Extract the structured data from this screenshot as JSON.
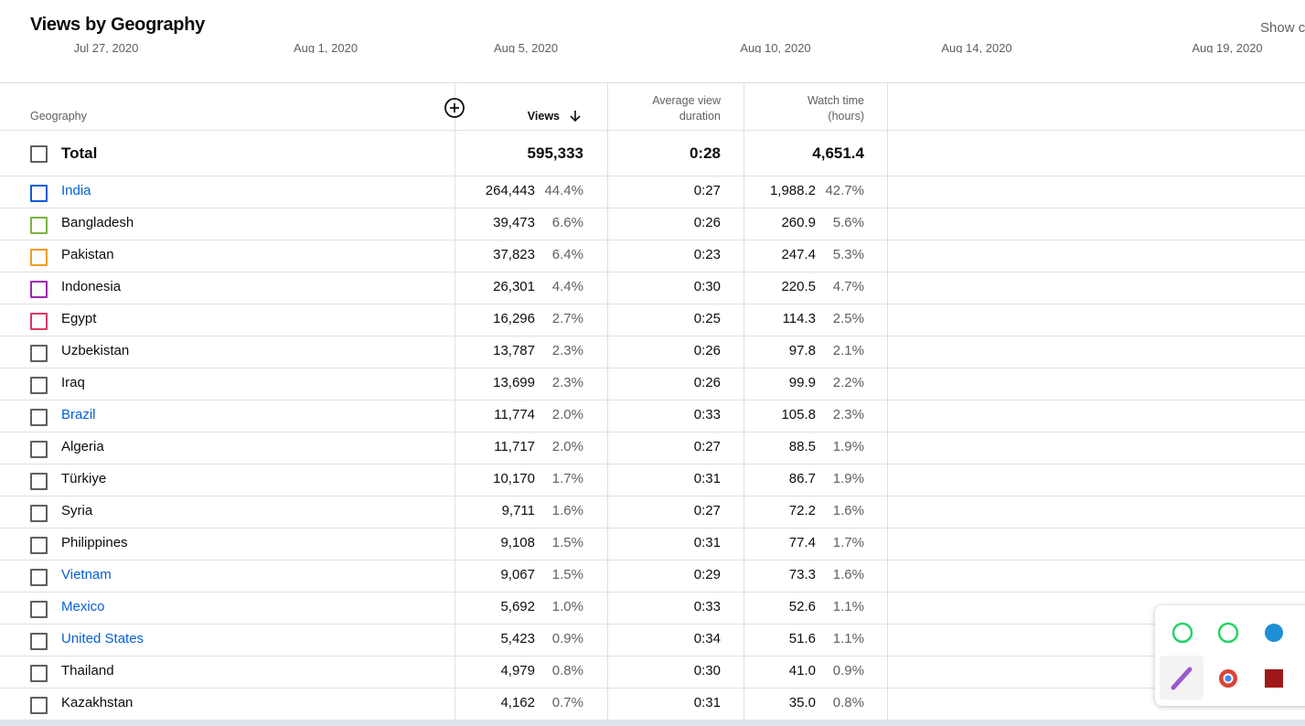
{
  "header": {
    "title": "Views by Geography",
    "show_button": "Show c",
    "timeline_labels": [
      "Jul 27, 2020",
      "Aug 1, 2020",
      "Aug 5, 2020",
      "Aug 10, 2020",
      "Aug 14, 2020",
      "Aug 19, 2020"
    ]
  },
  "table": {
    "columns": [
      "Geography",
      "Views",
      "Average view duration",
      "Watch time (hours)"
    ],
    "total": {
      "label": "Total",
      "views": "595,333",
      "avg_duration": "0:28",
      "watch_time": "4,651.4"
    },
    "rows": [
      {
        "name": "India",
        "views": "264,443",
        "views_pct": "44.4%",
        "avg_duration": "0:27",
        "watch_time": "1,988.2",
        "watch_pct": "42.7%",
        "color": "#065fd4",
        "link": true
      },
      {
        "name": "Bangladesh",
        "views": "39,473",
        "views_pct": "6.6%",
        "avg_duration": "0:26",
        "watch_time": "260.9",
        "watch_pct": "5.6%",
        "color": "#7cb342"
      },
      {
        "name": "Pakistan",
        "views": "37,823",
        "views_pct": "6.4%",
        "avg_duration": "0:23",
        "watch_time": "247.4",
        "watch_pct": "5.3%",
        "color": "#f29b1f"
      },
      {
        "name": "Indonesia",
        "views": "26,301",
        "views_pct": "4.4%",
        "avg_duration": "0:30",
        "watch_time": "220.5",
        "watch_pct": "4.7%",
        "color": "#9c27b0"
      },
      {
        "name": "Egypt",
        "views": "16,296",
        "views_pct": "2.7%",
        "avg_duration": "0:25",
        "watch_time": "114.3",
        "watch_pct": "2.5%",
        "color": "#d63864"
      },
      {
        "name": "Uzbekistan",
        "views": "13,787",
        "views_pct": "2.3%",
        "avg_duration": "0:26",
        "watch_time": "97.8",
        "watch_pct": "2.1%"
      },
      {
        "name": "Iraq",
        "views": "13,699",
        "views_pct": "2.3%",
        "avg_duration": "0:26",
        "watch_time": "99.9",
        "watch_pct": "2.2%"
      },
      {
        "name": "Brazil",
        "views": "11,774",
        "views_pct": "2.0%",
        "avg_duration": "0:33",
        "watch_time": "105.8",
        "watch_pct": "2.3%",
        "link": true
      },
      {
        "name": "Algeria",
        "views": "11,717",
        "views_pct": "2.0%",
        "avg_duration": "0:27",
        "watch_time": "88.5",
        "watch_pct": "1.9%"
      },
      {
        "name": "Türkiye",
        "views": "10,170",
        "views_pct": "1.7%",
        "avg_duration": "0:31",
        "watch_time": "86.7",
        "watch_pct": "1.9%"
      },
      {
        "name": "Syria",
        "views": "9,711",
        "views_pct": "1.6%",
        "avg_duration": "0:27",
        "watch_time": "72.2",
        "watch_pct": "1.6%"
      },
      {
        "name": "Philippines",
        "views": "9,108",
        "views_pct": "1.5%",
        "avg_duration": "0:31",
        "watch_time": "77.4",
        "watch_pct": "1.7%"
      },
      {
        "name": "Vietnam",
        "views": "9,067",
        "views_pct": "1.5%",
        "avg_duration": "0:29",
        "watch_time": "73.3",
        "watch_pct": "1.6%",
        "link": true
      },
      {
        "name": "Mexico",
        "views": "5,692",
        "views_pct": "1.0%",
        "avg_duration": "0:33",
        "watch_time": "52.6",
        "watch_pct": "1.1%",
        "link": true
      },
      {
        "name": "United States",
        "views": "5,423",
        "views_pct": "0.9%",
        "avg_duration": "0:34",
        "watch_time": "51.6",
        "watch_pct": "1.1%",
        "link": true
      },
      {
        "name": "Thailand",
        "views": "4,979",
        "views_pct": "0.8%",
        "avg_duration": "0:30",
        "watch_time": "41.0",
        "watch_pct": "0.9%"
      },
      {
        "name": "Kazakhstan",
        "views": "4,162",
        "views_pct": "0.7%",
        "avg_duration": "0:31",
        "watch_time": "35.0",
        "watch_pct": "0.8%"
      }
    ]
  }
}
